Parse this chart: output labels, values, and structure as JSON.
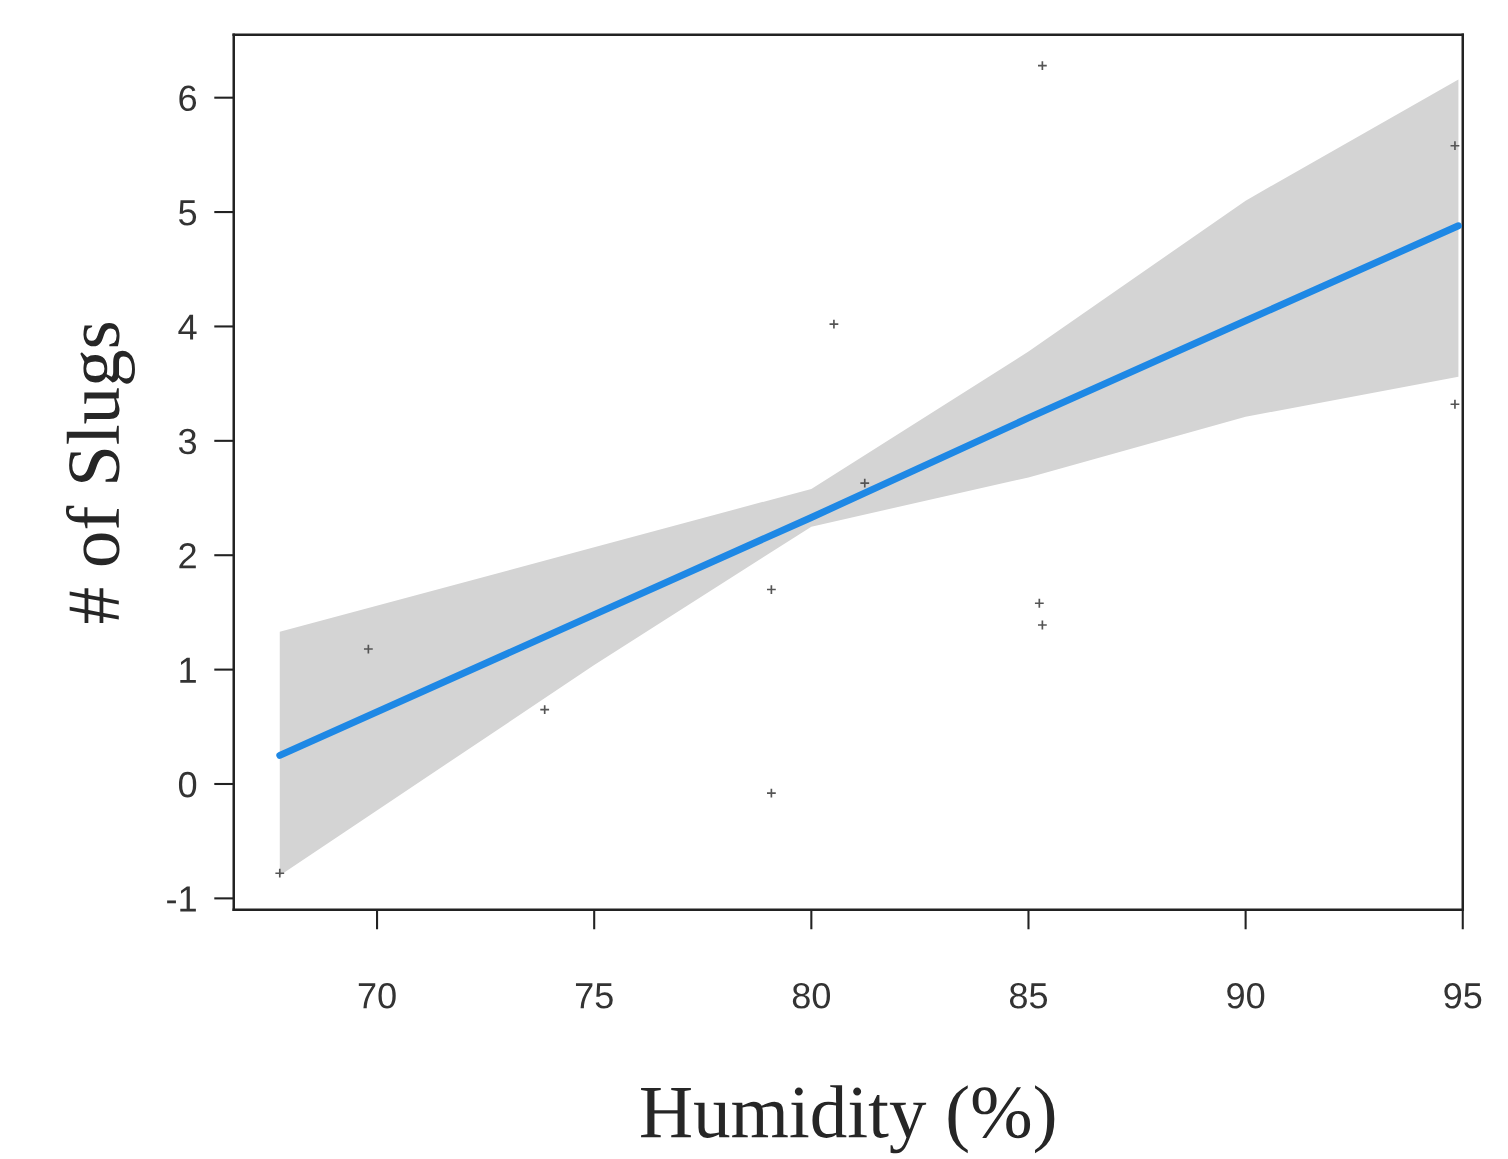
{
  "chart_data": {
    "type": "scatter",
    "xlabel": "Humidity (%)",
    "ylabel": "# of Slugs",
    "xlim": [
      66.7,
      95
    ],
    "ylim": [
      -1.1,
      6.55
    ],
    "xticks": [
      70,
      75,
      80,
      85,
      90,
      95
    ],
    "yticks": [
      -1,
      0,
      1,
      2,
      3,
      4,
      5,
      6
    ],
    "grid": false,
    "legend": false,
    "series": [
      {
        "color": "#555555",
        "marker": "cross",
        "x": [
          67.76,
          69.8,
          73.86,
          79.08,
          79.08,
          80.52,
          81.23,
          85.32,
          85.25,
          85.32,
          94.82,
          94.82
        ],
        "values": [
          -0.78,
          1.18,
          0.65,
          1.7,
          -0.08,
          4.02,
          2.63,
          6.28,
          1.58,
          1.39,
          5.58,
          3.32
        ]
      },
      {
        "type": "line",
        "color": "#1e88e5",
        "line_style": "solid",
        "x": [
          67.76,
          75,
          80,
          85,
          90,
          94.9
        ],
        "values": [
          0.25,
          1.48,
          2.33,
          3.2,
          4.05,
          4.88
        ],
        "lower": [
          -0.8,
          1.04,
          2.25,
          2.68,
          3.21,
          3.56
        ],
        "upper": [
          1.33,
          2.07,
          2.58,
          3.78,
          5.1,
          6.16
        ]
      }
    ]
  }
}
